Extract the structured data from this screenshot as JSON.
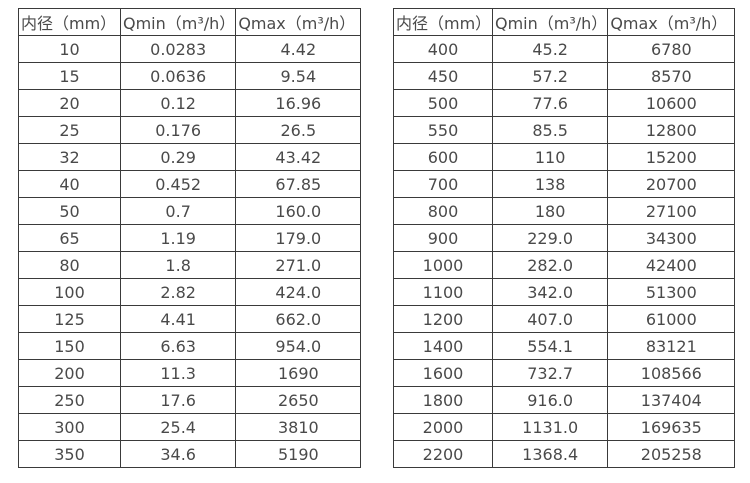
{
  "page": {
    "background": "#ffffff",
    "border_color": "#3a3a3a",
    "text_color": "#4a4a4a"
  },
  "tables": [
    {
      "headers": [
        "内径（mm）",
        "Qmin（m³/h）",
        "Qmax（m³/h）"
      ],
      "rows": [
        [
          "10",
          "0.0283",
          "4.42"
        ],
        [
          "15",
          "0.0636",
          "9.54"
        ],
        [
          "20",
          "0.12",
          "16.96"
        ],
        [
          "25",
          "0.176",
          "26.5"
        ],
        [
          "32",
          "0.29",
          "43.42"
        ],
        [
          "40",
          "0.452",
          "67.85"
        ],
        [
          "50",
          "0.7",
          "160.0"
        ],
        [
          "65",
          "1.19",
          "179.0"
        ],
        [
          "80",
          "1.8",
          "271.0"
        ],
        [
          "100",
          "2.82",
          "424.0"
        ],
        [
          "125",
          "4.41",
          "662.0"
        ],
        [
          "150",
          "6.63",
          "954.0"
        ],
        [
          "200",
          "11.3",
          "1690"
        ],
        [
          "250",
          "17.6",
          "2650"
        ],
        [
          "300",
          "25.4",
          "3810"
        ],
        [
          "350",
          "34.6",
          "5190"
        ]
      ]
    },
    {
      "headers": [
        "内径（mm）",
        "Qmin（m³/h）",
        "Qmax（m³/h）"
      ],
      "rows": [
        [
          "400",
          "45.2",
          "6780"
        ],
        [
          "450",
          "57.2",
          "8570"
        ],
        [
          "500",
          "77.6",
          "10600"
        ],
        [
          "550",
          "85.5",
          "12800"
        ],
        [
          "600",
          "110",
          "15200"
        ],
        [
          "700",
          "138",
          "20700"
        ],
        [
          "800",
          "180",
          "27100"
        ],
        [
          "900",
          "229.0",
          "34300"
        ],
        [
          "1000",
          "282.0",
          "42400"
        ],
        [
          "1100",
          "342.0",
          "51300"
        ],
        [
          "1200",
          "407.0",
          "61000"
        ],
        [
          "1400",
          "554.1",
          "83121"
        ],
        [
          "1600",
          "732.7",
          "108566"
        ],
        [
          "1800",
          "916.0",
          "137404"
        ],
        [
          "2000",
          "1131.0",
          "169635"
        ],
        [
          "2200",
          "1368.4",
          "205258"
        ]
      ]
    }
  ]
}
